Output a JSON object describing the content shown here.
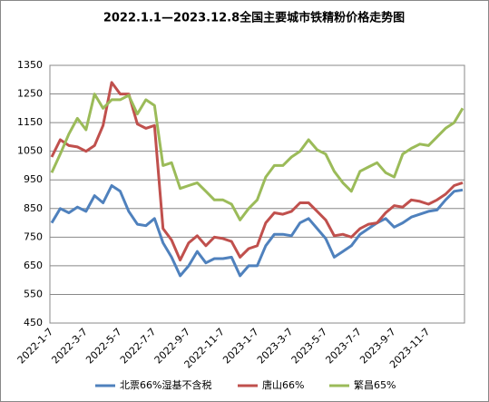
{
  "chart_data": {
    "type": "line",
    "title": "2022.1.1—2023.12.8全国主要城市铁精粉价格走势图",
    "categories": [
      "2022-1-7",
      null,
      null,
      null,
      "2022-3-7",
      null,
      null,
      null,
      "2022-5-7",
      null,
      null,
      null,
      "2022-7-7",
      null,
      null,
      null,
      "2022-9-7",
      null,
      null,
      null,
      "2022-11-7",
      null,
      null,
      null,
      "2023-1-7",
      null,
      null,
      null,
      "2023-3-7",
      null,
      null,
      null,
      "2023-5-7",
      null,
      null,
      null,
      "2023-7-7",
      null,
      null,
      null,
      "2023-9-7",
      null,
      null,
      null,
      "2023-11-7",
      null,
      null,
      null,
      null
    ],
    "series": [
      {
        "name": "北票66%湿基不含税",
        "color": "#4f81bd",
        "values": [
          800,
          850,
          835,
          855,
          840,
          895,
          870,
          930,
          910,
          840,
          795,
          790,
          815,
          730,
          680,
          615,
          650,
          700,
          660,
          675,
          675,
          680,
          615,
          650,
          650,
          720,
          760,
          760,
          755,
          800,
          815,
          780,
          745,
          680,
          700,
          720,
          760,
          780,
          800,
          815,
          785,
          800,
          820,
          830,
          840,
          845,
          880,
          910,
          915
        ]
      },
      {
        "name": "唐山66%",
        "color": "#c0504d",
        "values": [
          1030,
          1090,
          1070,
          1065,
          1050,
          1070,
          1140,
          1290,
          1250,
          1250,
          1145,
          1130,
          1140,
          780,
          740,
          670,
          730,
          755,
          720,
          750,
          745,
          735,
          680,
          710,
          720,
          800,
          835,
          830,
          840,
          870,
          870,
          840,
          810,
          755,
          760,
          750,
          780,
          795,
          800,
          835,
          860,
          855,
          880,
          875,
          865,
          880,
          900,
          930,
          940
        ]
      },
      {
        "name": "繁昌65%",
        "color": "#9bbb59",
        "values": [
          975,
          1040,
          1110,
          1165,
          1125,
          1250,
          1200,
          1230,
          1230,
          1245,
          1180,
          1230,
          1210,
          1000,
          1010,
          920,
          930,
          940,
          910,
          880,
          880,
          865,
          810,
          850,
          880,
          960,
          1000,
          1000,
          1030,
          1050,
          1090,
          1055,
          1040,
          980,
          940,
          910,
          980,
          995,
          1010,
          975,
          960,
          1040,
          1060,
          1075,
          1070,
          1100,
          1130,
          1150,
          1200
        ]
      }
    ],
    "ylim": [
      450,
      1350
    ],
    "yticks": [
      450,
      550,
      650,
      750,
      850,
      950,
      1050,
      1150,
      1250,
      1350
    ],
    "grid": true
  }
}
